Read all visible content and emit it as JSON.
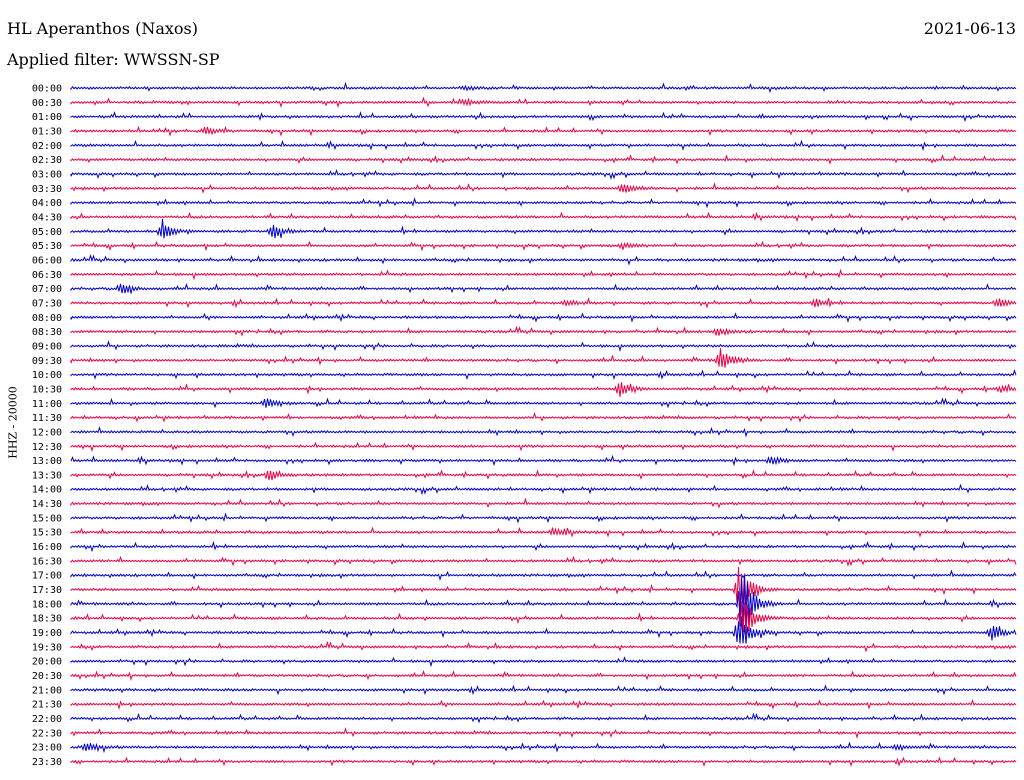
{
  "header": {
    "station": "HL Aperanthos (Naxos)",
    "date": "2021-06-13",
    "filter": "Applied filter: WWSSN-SP"
  },
  "chart_data": {
    "type": "line",
    "title": "HL Aperanthos (Naxos)",
    "ylabel": "HHZ - 20000",
    "colors": [
      "#0000cc",
      "#ee0044"
    ],
    "row_labels": [
      "00:00",
      "00:30",
      "01:00",
      "01:30",
      "02:00",
      "02:30",
      "03:00",
      "03:30",
      "04:00",
      "04:30",
      "05:00",
      "05:30",
      "06:00",
      "06:30",
      "07:00",
      "07:30",
      "08:00",
      "08:30",
      "09:00",
      "09:30",
      "10:00",
      "10:30",
      "11:00",
      "11:30",
      "12:00",
      "12:30",
      "13:00",
      "13:30",
      "14:00",
      "14:30",
      "15:00",
      "15:30",
      "16:00",
      "16:30",
      "17:00",
      "17:30",
      "18:00",
      "18:30",
      "19:00",
      "19:30",
      "20:00",
      "20:30",
      "21:00",
      "21:30",
      "22:00",
      "22:30",
      "23:00",
      "23:30"
    ],
    "events": [
      {
        "row": 0,
        "minute": 12.5,
        "amplitude": 2
      },
      {
        "row": 1,
        "minute": 12.5,
        "amplitude": 3
      },
      {
        "row": 3,
        "minute": 4.3,
        "amplitude": 4
      },
      {
        "row": 7,
        "minute": 17.5,
        "amplitude": 6
      },
      {
        "row": 10,
        "minute": 2.9,
        "amplitude": 9
      },
      {
        "row": 10,
        "minute": 6.4,
        "amplitude": 7
      },
      {
        "row": 11,
        "minute": 17.5,
        "amplitude": 3
      },
      {
        "row": 14,
        "minute": 1.6,
        "amplitude": 6
      },
      {
        "row": 15,
        "minute": 15.7,
        "amplitude": 3
      },
      {
        "row": 15,
        "minute": 23.6,
        "amplitude": 4
      },
      {
        "row": 15,
        "minute": 29.4,
        "amplitude": 4
      },
      {
        "row": 17,
        "minute": 20.5,
        "amplitude": 4
      },
      {
        "row": 19,
        "minute": 20.6,
        "amplitude": 12
      },
      {
        "row": 21,
        "minute": 17.4,
        "amplitude": 8
      },
      {
        "row": 21,
        "minute": 29.5,
        "amplitude": 3
      },
      {
        "row": 22,
        "minute": 6.2,
        "amplitude": 5
      },
      {
        "row": 26,
        "minute": 22.2,
        "amplitude": 4
      },
      {
        "row": 27,
        "minute": 6.3,
        "amplitude": 6
      },
      {
        "row": 31,
        "minute": 15.3,
        "amplitude": 4
      },
      {
        "row": 35,
        "minute": 21.2,
        "amplitude": 30
      },
      {
        "row": 36,
        "minute": 21.3,
        "amplitude": 38
      },
      {
        "row": 37,
        "minute": 21.3,
        "amplitude": 25
      },
      {
        "row": 38,
        "minute": 21.2,
        "amplitude": 22
      },
      {
        "row": 38,
        "minute": 29.2,
        "amplitude": 8
      },
      {
        "row": 46,
        "minute": 0.5,
        "amplitude": 5
      },
      {
        "row": 46,
        "minute": 26.2,
        "amplitude": 3
      }
    ]
  }
}
